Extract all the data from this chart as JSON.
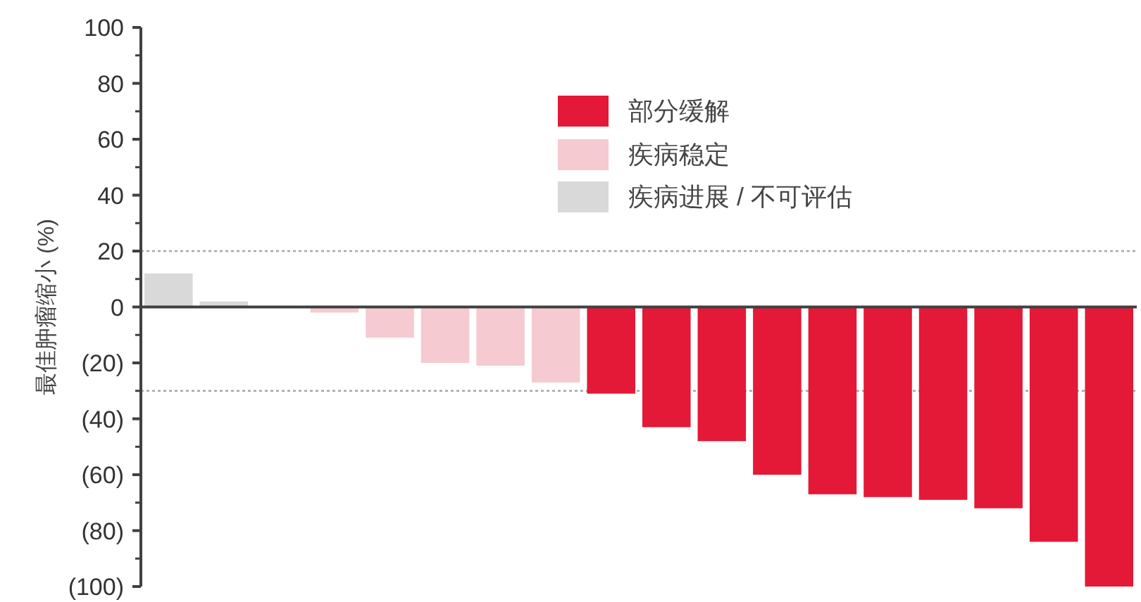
{
  "chart_data": {
    "type": "bar",
    "ylabel": "最佳肿瘤缩小 (%)",
    "categories": [
      null,
      null,
      null,
      null,
      null,
      null,
      null,
      null,
      null,
      null,
      null,
      null,
      null,
      null,
      null,
      null,
      null,
      null
    ],
    "series": [
      {
        "name": "部分缓解",
        "color": "#e31937",
        "values": [
          null,
          null,
          null,
          null,
          null,
          null,
          null,
          null,
          -31,
          -43,
          -48,
          -60,
          -67,
          -68,
          -69,
          -72,
          -84,
          -100
        ]
      },
      {
        "name": "疾病稳定",
        "color": "#f6cad1",
        "values": [
          null,
          null,
          null,
          -2,
          -11,
          -20,
          -21,
          -27,
          null,
          null,
          null,
          null,
          null,
          null,
          null,
          null,
          null,
          null
        ]
      },
      {
        "name": "疾病进展 / 不可评估",
        "color": "#d9d9d9",
        "values": [
          12,
          2,
          null,
          null,
          null,
          null,
          null,
          null,
          null,
          null,
          null,
          null,
          null,
          null,
          null,
          null,
          null,
          null
        ]
      }
    ],
    "ylim": [
      -100,
      100
    ],
    "yticks": [
      100,
      80,
      60,
      40,
      20,
      0,
      {
        "value": -20,
        "label": "(20)"
      },
      {
        "value": -40,
        "label": "(40)"
      },
      {
        "value": -60,
        "label": "(60)"
      },
      {
        "value": -80,
        "label": "(80)"
      },
      {
        "value": -100,
        "label": "(100)"
      }
    ],
    "ref_lines": [
      {
        "axis": "y",
        "value": 20,
        "color": "#a6a6a6",
        "line_style": "dotted"
      },
      {
        "axis": "y",
        "value": -30,
        "color": "#a6a6a6",
        "line_style": "dotted"
      }
    ],
    "legend": "top",
    "grid": false
  }
}
